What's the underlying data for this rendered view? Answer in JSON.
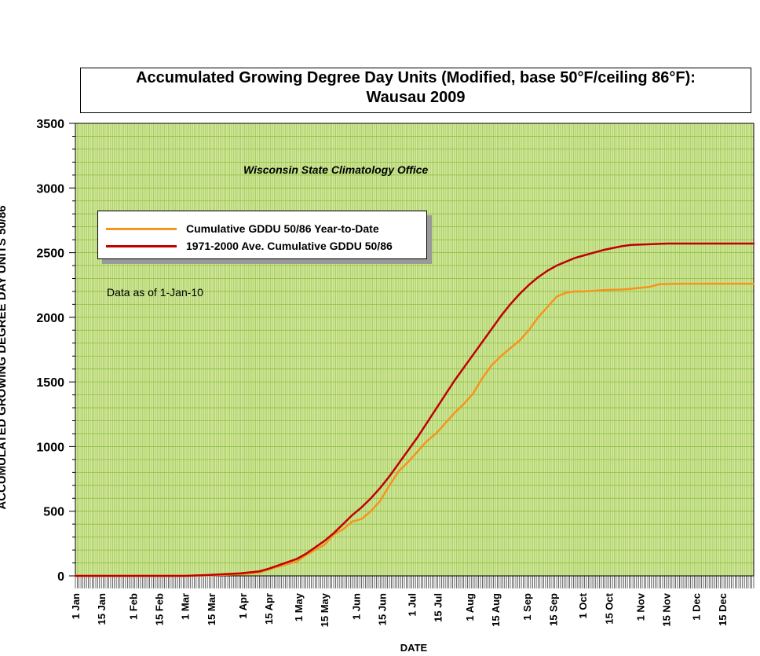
{
  "chart_data": {
    "type": "line",
    "title": "Accumulated Growing Degree Day Units (Modified, base 50°F/ceiling 86°F):",
    "subtitle": "Wausau 2009",
    "annotation_org": "Wisconsin State Climatology Office",
    "annotation_asof": "Data as of 1-Jan-10",
    "xlabel": "DATE",
    "ylabel": "ACCUMULATED GROWING DEGREE DAY UNITS 50/86",
    "xlim": [
      1,
      366
    ],
    "ylim": [
      0,
      3500
    ],
    "yticks": [
      0,
      500,
      1000,
      1500,
      2000,
      2500,
      3000,
      3500
    ],
    "xticks": [
      {
        "day": 1,
        "label": "1 Jan"
      },
      {
        "day": 15,
        "label": "15 Jan"
      },
      {
        "day": 32,
        "label": "1 Feb"
      },
      {
        "day": 46,
        "label": "15 Feb"
      },
      {
        "day": 60,
        "label": "1 Mar"
      },
      {
        "day": 74,
        "label": "15 Mar"
      },
      {
        "day": 91,
        "label": "1 Apr"
      },
      {
        "day": 105,
        "label": "15 Apr"
      },
      {
        "day": 121,
        "label": "1 May"
      },
      {
        "day": 135,
        "label": "15 May"
      },
      {
        "day": 152,
        "label": "1 Jun"
      },
      {
        "day": 166,
        "label": "15 Jun"
      },
      {
        "day": 182,
        "label": "1 Jul"
      },
      {
        "day": 196,
        "label": "15 Jul"
      },
      {
        "day": 213,
        "label": "1 Aug"
      },
      {
        "day": 227,
        "label": "15 Aug"
      },
      {
        "day": 244,
        "label": "1 Sep"
      },
      {
        "day": 258,
        "label": "15 Sep"
      },
      {
        "day": 274,
        "label": "1 Oct"
      },
      {
        "day": 288,
        "label": "15 Oct"
      },
      {
        "day": 305,
        "label": "1 Nov"
      },
      {
        "day": 319,
        "label": "15 Nov"
      },
      {
        "day": 335,
        "label": "1 Dec"
      },
      {
        "day": 349,
        "label": "15 Dec"
      }
    ],
    "grid": true,
    "legend_placement": "top-left",
    "background_color": "#d4e8a0",
    "grid_color": "#8fbf3f",
    "series": [
      {
        "name": "Cumulative GDDU 50/86 Year-to-Date",
        "color": "#f7941d",
        "x": [
          1,
          60,
          75,
          90,
          100,
          105,
          110,
          120,
          125,
          130,
          135,
          140,
          145,
          150,
          155,
          160,
          165,
          170,
          175,
          180,
          185,
          190,
          195,
          200,
          205,
          210,
          215,
          220,
          225,
          230,
          235,
          240,
          245,
          250,
          255,
          260,
          265,
          270,
          275,
          285,
          295,
          300,
          310,
          315,
          320,
          330,
          340,
          350,
          366
        ],
        "y": [
          0,
          0,
          5,
          12,
          25,
          50,
          70,
          110,
          160,
          200,
          240,
          320,
          360,
          420,
          440,
          500,
          580,
          700,
          810,
          880,
          960,
          1040,
          1100,
          1180,
          1260,
          1330,
          1410,
          1530,
          1630,
          1700,
          1760,
          1820,
          1900,
          2000,
          2080,
          2160,
          2190,
          2200,
          2200,
          2210,
          2215,
          2220,
          2235,
          2255,
          2258,
          2260,
          2260,
          2260,
          2260
        ]
      },
      {
        "name": "1971-2000 Ave. Cumulative GDDU 50/86",
        "color": "#c00000",
        "x": [
          1,
          60,
          75,
          90,
          100,
          105,
          110,
          120,
          125,
          130,
          135,
          140,
          145,
          150,
          155,
          160,
          165,
          170,
          175,
          180,
          185,
          190,
          195,
          200,
          205,
          210,
          215,
          220,
          225,
          230,
          235,
          240,
          245,
          250,
          255,
          260,
          265,
          270,
          275,
          285,
          295,
          300,
          310,
          315,
          320,
          330,
          340,
          350,
          366
        ],
        "y": [
          0,
          0,
          8,
          20,
          35,
          55,
          80,
          130,
          170,
          220,
          270,
          330,
          400,
          470,
          530,
          600,
          680,
          770,
          870,
          970,
          1070,
          1180,
          1290,
          1400,
          1510,
          1610,
          1710,
          1810,
          1910,
          2010,
          2100,
          2180,
          2250,
          2310,
          2360,
          2400,
          2430,
          2460,
          2480,
          2520,
          2550,
          2560,
          2565,
          2568,
          2570,
          2570,
          2570,
          2570,
          2570
        ]
      }
    ]
  }
}
